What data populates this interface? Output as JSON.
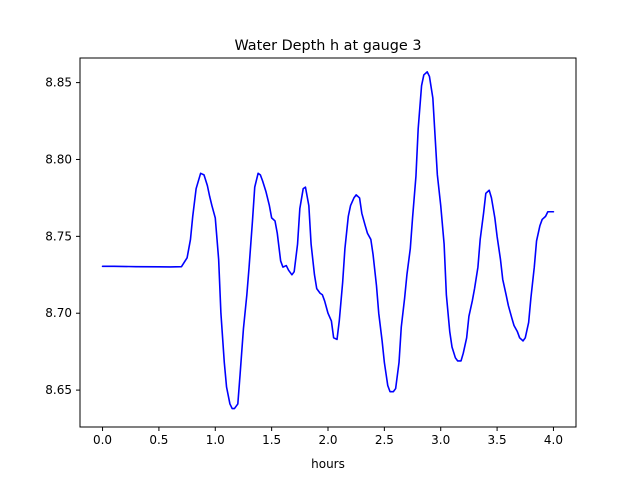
{
  "chart_data": {
    "type": "line",
    "title": "Water Depth h at gauge 3",
    "xlabel": "hours",
    "ylabel": "",
    "xlim": [
      -0.2,
      4.2
    ],
    "ylim": [
      8.626,
      8.866
    ],
    "xticks": [
      0.0,
      0.5,
      1.0,
      1.5,
      2.0,
      2.5,
      3.0,
      3.5,
      4.0
    ],
    "xtick_labels": [
      "0.0",
      "0.5",
      "1.0",
      "1.5",
      "2.0",
      "2.5",
      "3.0",
      "3.5",
      "4.0"
    ],
    "yticks": [
      8.65,
      8.7,
      8.75,
      8.8,
      8.85
    ],
    "ytick_labels": [
      "8.65",
      "8.70",
      "8.75",
      "8.80",
      "8.85"
    ],
    "grid": false,
    "series": [
      {
        "color": "#0000ff",
        "x": [
          0.0,
          0.1,
          0.3,
          0.5,
          0.6,
          0.7,
          0.75,
          0.78,
          0.8,
          0.83,
          0.87,
          0.9,
          0.93,
          0.95,
          0.97,
          1.0,
          1.03,
          1.05,
          1.08,
          1.1,
          1.13,
          1.15,
          1.17,
          1.2,
          1.22,
          1.25,
          1.28,
          1.3,
          1.33,
          1.35,
          1.38,
          1.4,
          1.42,
          1.45,
          1.48,
          1.5,
          1.53,
          1.55,
          1.58,
          1.6,
          1.63,
          1.65,
          1.68,
          1.7,
          1.73,
          1.75,
          1.78,
          1.8,
          1.83,
          1.85,
          1.88,
          1.9,
          1.93,
          1.95,
          1.97,
          2.0,
          2.03,
          2.05,
          2.08,
          2.1,
          2.13,
          2.15,
          2.18,
          2.2,
          2.23,
          2.25,
          2.28,
          2.3,
          2.33,
          2.35,
          2.38,
          2.4,
          2.43,
          2.45,
          2.48,
          2.5,
          2.53,
          2.55,
          2.58,
          2.6,
          2.63,
          2.65,
          2.68,
          2.7,
          2.73,
          2.75,
          2.78,
          2.8,
          2.83,
          2.85,
          2.88,
          2.9,
          2.93,
          2.95,
          2.97,
          3.0,
          3.03,
          3.05,
          3.08,
          3.1,
          3.13,
          3.15,
          3.18,
          3.2,
          3.23,
          3.25,
          3.28,
          3.3,
          3.33,
          3.35,
          3.38,
          3.4,
          3.43,
          3.45,
          3.48,
          3.5,
          3.53,
          3.55,
          3.58,
          3.6,
          3.63,
          3.65,
          3.68,
          3.7,
          3.73,
          3.75,
          3.78,
          3.8,
          3.83,
          3.85,
          3.88,
          3.9,
          3.93,
          3.95,
          3.97,
          4.0
        ],
        "y": [
          8.7305,
          8.7305,
          8.7303,
          8.7302,
          8.7301,
          8.7303,
          8.736,
          8.748,
          8.763,
          8.781,
          8.791,
          8.79,
          8.783,
          8.776,
          8.77,
          8.762,
          8.735,
          8.7,
          8.668,
          8.652,
          8.641,
          8.638,
          8.638,
          8.641,
          8.66,
          8.69,
          8.712,
          8.73,
          8.76,
          8.782,
          8.791,
          8.79,
          8.786,
          8.779,
          8.77,
          8.762,
          8.76,
          8.752,
          8.734,
          8.73,
          8.731,
          8.728,
          8.725,
          8.727,
          8.745,
          8.768,
          8.781,
          8.782,
          8.77,
          8.745,
          8.725,
          8.716,
          8.713,
          8.712,
          8.708,
          8.7,
          8.695,
          8.684,
          8.683,
          8.695,
          8.72,
          8.742,
          8.763,
          8.77,
          8.775,
          8.777,
          8.775,
          8.765,
          8.757,
          8.752,
          8.748,
          8.738,
          8.718,
          8.7,
          8.682,
          8.668,
          8.653,
          8.649,
          8.649,
          8.651,
          8.668,
          8.691,
          8.71,
          8.725,
          8.742,
          8.762,
          8.789,
          8.82,
          8.848,
          8.855,
          8.857,
          8.854,
          8.84,
          8.815,
          8.79,
          8.77,
          8.745,
          8.712,
          8.688,
          8.678,
          8.671,
          8.669,
          8.669,
          8.674,
          8.684,
          8.698,
          8.708,
          8.716,
          8.73,
          8.748,
          8.765,
          8.778,
          8.78,
          8.775,
          8.762,
          8.75,
          8.735,
          8.722,
          8.712,
          8.705,
          8.697,
          8.692,
          8.688,
          8.684,
          8.682,
          8.684,
          8.694,
          8.71,
          8.73,
          8.747,
          8.757,
          8.761,
          8.763,
          8.766,
          8.766,
          8.766
        ]
      }
    ]
  }
}
